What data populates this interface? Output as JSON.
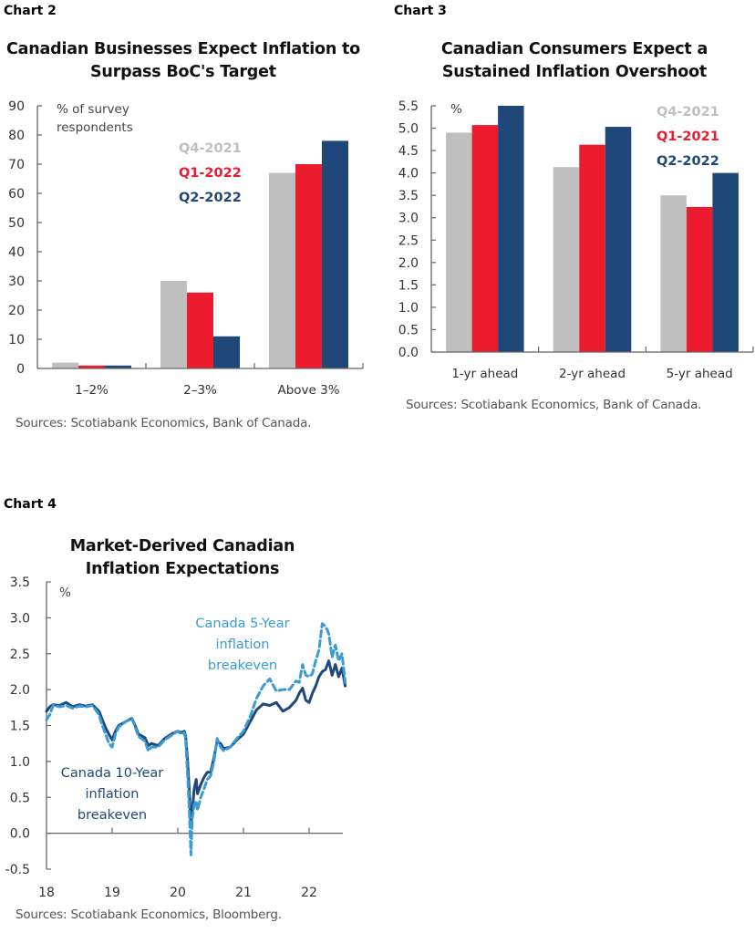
{
  "colors": {
    "q4_2021": "#bfbfbf",
    "q1": "#ec1b2e",
    "q2_2022": "#1f4878",
    "axis": "#666666",
    "line_10yr": "#1f4878",
    "line_5yr": "#3a9bd5"
  },
  "chart_data": [
    {
      "id": "chart2",
      "label": "Chart 2",
      "type": "bar",
      "title": "Canadian Businesses Expect Inflation to Surpass BoC's Target",
      "title_lines": [
        "Canadian Businesses Expect Inflation to",
        "Surpass BoC's Target"
      ],
      "unit_label_lines": [
        "% of survey",
        "respondents"
      ],
      "xlabel": "",
      "ylabel": "% of survey respondents",
      "ylim": [
        0,
        90
      ],
      "yticks": [
        0,
        10,
        20,
        30,
        40,
        50,
        60,
        70,
        80,
        90
      ],
      "categories": [
        "1–2%",
        "2–3%",
        "Above 3%"
      ],
      "series": [
        {
          "name": "Q4-2021",
          "color_key": "q4_2021",
          "values": [
            2,
            30,
            67
          ]
        },
        {
          "name": "Q1-2022",
          "color_key": "q1",
          "values": [
            1,
            26,
            70
          ]
        },
        {
          "name": "Q2-2022",
          "color_key": "q2_2022",
          "values": [
            1,
            11,
            78
          ]
        }
      ],
      "legend_position": "top-center",
      "grid": false,
      "source": "Sources: Scotiabank Economics, Bank of Canada."
    },
    {
      "id": "chart3",
      "label": "Chart 3",
      "type": "bar",
      "title": "Canadian Consumers Expect a Sustained Inflation Overshoot",
      "title_lines": [
        "Canadian Consumers Expect a",
        "Sustained Inflation Overshoot"
      ],
      "unit_label_lines": [
        "%"
      ],
      "xlabel": "",
      "ylabel": "%",
      "ylim": [
        0,
        5.5
      ],
      "yticks": [
        0.0,
        0.5,
        1.0,
        1.5,
        2.0,
        2.5,
        3.0,
        3.5,
        4.0,
        4.5,
        5.0,
        5.5
      ],
      "ytick_decimals": 1,
      "categories": [
        "1-yr ahead",
        "2-yr ahead",
        "5-yr ahead"
      ],
      "series": [
        {
          "name": "Q4-2021",
          "color_key": "q4_2021",
          "values": [
            4.9,
            4.13,
            3.5
          ]
        },
        {
          "name": "Q1-2021",
          "color_key": "q1",
          "values": [
            5.07,
            4.63,
            3.24
          ]
        },
        {
          "name": "Q2-2022",
          "color_key": "q2_2022",
          "values": [
            5.5,
            5.03,
            4.0
          ]
        }
      ],
      "legend_position": "top-right",
      "grid": false,
      "source": "Sources: Scotiabank Economics, Bank of Canada."
    },
    {
      "id": "chart4",
      "label": "Chart 4",
      "type": "line",
      "title": "Market-Derived Canadian Inflation Expectations",
      "title_lines": [
        "Market-Derived Canadian",
        "Inflation Expectations"
      ],
      "unit_label_lines": [
        "%"
      ],
      "xlabel": "",
      "ylabel": "%",
      "xlim": [
        18,
        22.6
      ],
      "ylim": [
        -0.5,
        3.5
      ],
      "xticks": [
        18,
        19,
        20,
        21,
        22
      ],
      "yticks": [
        -0.5,
        0.0,
        0.5,
        1.0,
        1.5,
        2.0,
        2.5,
        3.0,
        3.5
      ],
      "ytick_decimals": 1,
      "grid": false,
      "series": [
        {
          "name": "Canada 10-Year inflation breakeven",
          "annotation_lines": [
            "Canada 10-Year",
            "inflation",
            "breakeven"
          ],
          "color_key": "line_10yr",
          "style": "solid",
          "x": [
            18.0,
            18.05,
            18.1,
            18.2,
            18.3,
            18.4,
            18.5,
            18.6,
            18.7,
            18.8,
            18.85,
            18.9,
            18.95,
            19.0,
            19.05,
            19.1,
            19.2,
            19.3,
            19.35,
            19.4,
            19.5,
            19.55,
            19.6,
            19.7,
            19.8,
            19.9,
            20.0,
            20.05,
            20.1,
            20.12,
            20.15,
            20.18,
            20.2,
            20.22,
            20.25,
            20.28,
            20.3,
            20.35,
            20.4,
            20.45,
            20.5,
            20.55,
            20.6,
            20.65,
            20.7,
            20.8,
            20.9,
            21.0,
            21.1,
            21.2,
            21.3,
            21.4,
            21.5,
            21.6,
            21.7,
            21.8,
            21.85,
            21.9,
            21.95,
            22.0,
            22.05,
            22.1,
            22.15,
            22.2,
            22.25,
            22.3,
            22.35,
            22.4,
            22.45,
            22.5,
            22.55
          ],
          "y": [
            1.7,
            1.76,
            1.79,
            1.78,
            1.82,
            1.76,
            1.79,
            1.77,
            1.79,
            1.7,
            1.58,
            1.47,
            1.38,
            1.3,
            1.42,
            1.5,
            1.55,
            1.6,
            1.5,
            1.38,
            1.33,
            1.22,
            1.25,
            1.22,
            1.32,
            1.38,
            1.42,
            1.4,
            1.42,
            1.35,
            1.0,
            0.5,
            0.1,
            0.3,
            0.62,
            0.75,
            0.55,
            0.68,
            0.78,
            0.85,
            0.85,
            1.05,
            1.28,
            1.25,
            1.18,
            1.2,
            1.3,
            1.38,
            1.55,
            1.72,
            1.8,
            1.78,
            1.82,
            1.7,
            1.75,
            1.85,
            1.95,
            2.02,
            1.85,
            1.82,
            1.95,
            2.05,
            2.18,
            2.25,
            2.28,
            2.4,
            2.2,
            2.35,
            2.18,
            2.3,
            2.05
          ]
        },
        {
          "name": "Canada 5-Year inflation breakeven",
          "annotation_lines": [
            "Canada 5-Year",
            "inflation",
            "breakeven"
          ],
          "color_key": "line_5yr",
          "style": "dashed",
          "x": [
            18.0,
            18.05,
            18.1,
            18.2,
            18.3,
            18.4,
            18.5,
            18.6,
            18.7,
            18.8,
            18.85,
            18.9,
            18.95,
            19.0,
            19.05,
            19.1,
            19.2,
            19.3,
            19.35,
            19.4,
            19.5,
            19.55,
            19.6,
            19.7,
            19.8,
            19.9,
            20.0,
            20.05,
            20.1,
            20.12,
            20.15,
            20.18,
            20.2,
            20.22,
            20.25,
            20.28,
            20.3,
            20.35,
            20.4,
            20.45,
            20.5,
            20.55,
            20.6,
            20.65,
            20.7,
            20.8,
            20.9,
            21.0,
            21.1,
            21.2,
            21.3,
            21.4,
            21.5,
            21.6,
            21.7,
            21.8,
            21.85,
            21.9,
            21.95,
            22.0,
            22.05,
            22.1,
            22.15,
            22.2,
            22.25,
            22.3,
            22.35,
            22.4,
            22.45,
            22.5,
            22.55
          ],
          "y": [
            1.58,
            1.65,
            1.78,
            1.76,
            1.78,
            1.74,
            1.77,
            1.76,
            1.78,
            1.65,
            1.5,
            1.38,
            1.25,
            1.2,
            1.38,
            1.48,
            1.55,
            1.6,
            1.48,
            1.35,
            1.28,
            1.15,
            1.2,
            1.2,
            1.3,
            1.36,
            1.42,
            1.38,
            1.4,
            1.3,
            0.8,
            0.2,
            -0.3,
            0.2,
            0.4,
            0.45,
            0.32,
            0.5,
            0.62,
            0.75,
            0.8,
            1.0,
            1.32,
            1.2,
            1.15,
            1.2,
            1.32,
            1.42,
            1.62,
            1.88,
            2.05,
            2.15,
            1.98,
            2.0,
            2.0,
            2.12,
            2.1,
            2.35,
            2.2,
            2.18,
            2.22,
            2.4,
            2.55,
            2.92,
            2.88,
            2.78,
            2.45,
            2.62,
            2.4,
            2.5,
            2.1
          ]
        }
      ],
      "source": "Sources: Scotiabank Economics, Bloomberg."
    }
  ]
}
